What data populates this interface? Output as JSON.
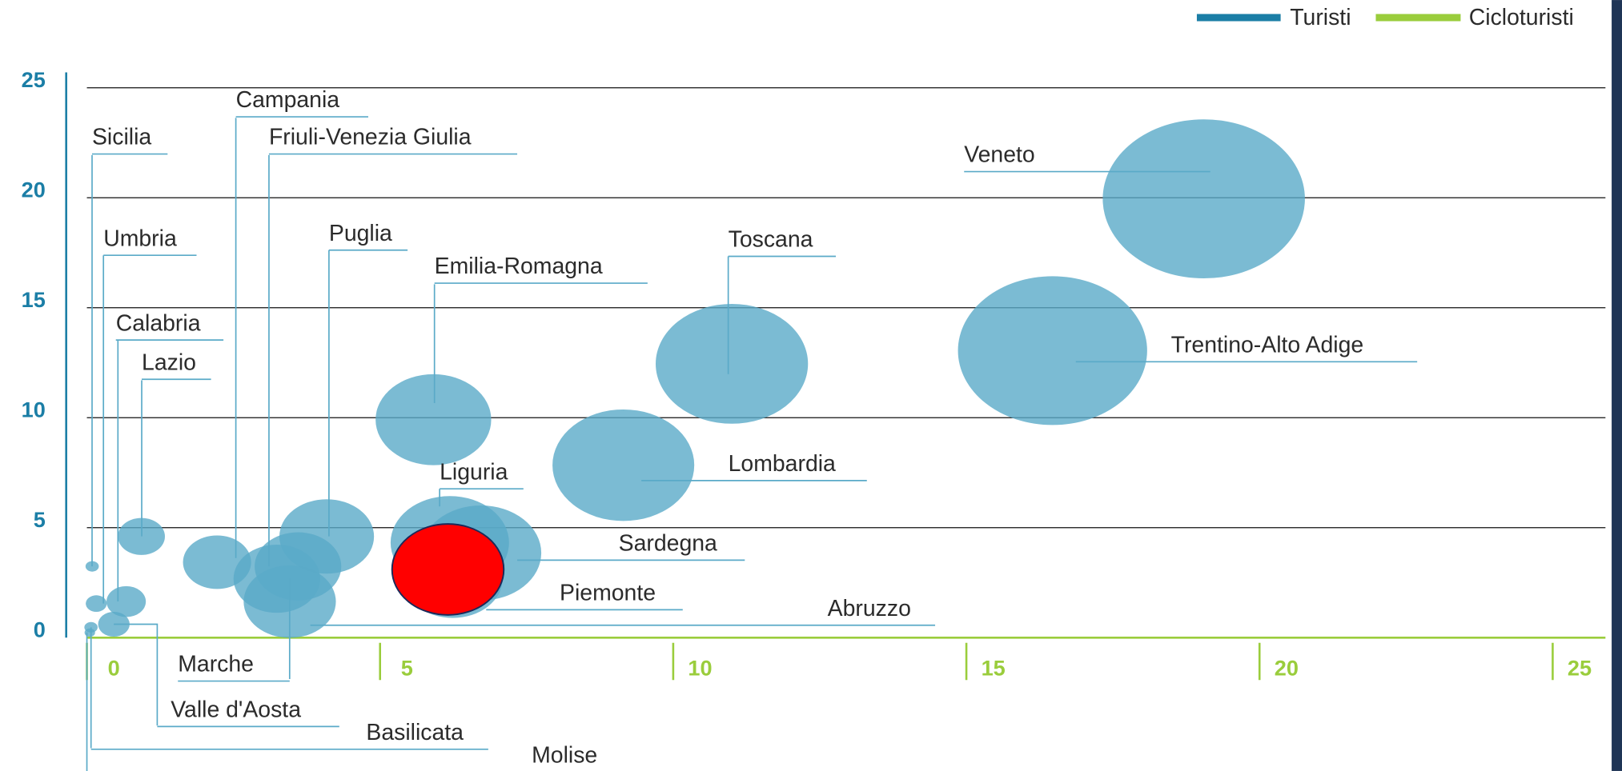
{
  "chart_data": {
    "type": "bubble",
    "legend": [
      {
        "name": "Turisti",
        "color": "#1b7ea6"
      },
      {
        "name": "Cicloturisti",
        "color": "#9acd3c"
      }
    ],
    "bubble_color": "#5aaac8",
    "xlim": [
      0,
      25.9
    ],
    "xticks": [
      0,
      5,
      10,
      15,
      20,
      25
    ],
    "ylim": [
      0,
      25.7
    ],
    "yticks": [
      0,
      5,
      10,
      15,
      20,
      25
    ],
    "grid": true,
    "points": [
      {
        "name": "Sicilia",
        "x": 0.09,
        "y": 3.24,
        "size": 1.6
      },
      {
        "name": "Umbria",
        "x": 0.16,
        "y": 1.55,
        "size": 4
      },
      {
        "name": "Calabria",
        "x": 0.67,
        "y": 1.64,
        "size": 14
      },
      {
        "name": "Lazio",
        "x": 0.93,
        "y": 4.6,
        "size": 20
      },
      {
        "name": "Campania",
        "x": 2.22,
        "y": 3.43,
        "size": 42
      },
      {
        "name": "Friuli-Venezia Giulia",
        "x": 3.6,
        "y": 3.24,
        "size": 68
      },
      {
        "name": "Puglia",
        "x": 4.09,
        "y": 4.6,
        "size": 81
      },
      {
        "name": "Emilia-Romagna",
        "x": 5.91,
        "y": 9.91,
        "size": 121
      },
      {
        "name": "Toscana",
        "x": 11.0,
        "y": 12.45,
        "size": 210
      },
      {
        "name": "Veneto",
        "x": 19.05,
        "y": 19.95,
        "size": 370
      },
      {
        "name": "Trentino-Alto Adige",
        "x": 16.47,
        "y": 13.05,
        "size": 324
      },
      {
        "name": "Lombardia",
        "x": 9.15,
        "y": 7.84,
        "size": 182
      },
      {
        "name": "Liguria",
        "x": 6.19,
        "y": 4.32,
        "size": 127
      },
      {
        "name": "Sardegna",
        "x": 6.72,
        "y": 3.85,
        "size": 132
      },
      {
        "name": "Piemonte",
        "x": 6.24,
        "y": 2.68,
        "size": 90
      },
      {
        "name": "Abruzzo",
        "x": 3.46,
        "y": 1.64,
        "size": 77
      },
      {
        "name": "Marche",
        "x": 3.24,
        "y": 2.68,
        "size": 68
      },
      {
        "name": "Valle d'Aosta",
        "x": 0.46,
        "y": 0.61,
        "size": 9
      },
      {
        "name": "Basilicata",
        "x": 0.07,
        "y": 0.47,
        "size": 1.6
      },
      {
        "name": "Molise",
        "x": 0.05,
        "y": 0.23,
        "size": 1
      }
    ]
  }
}
